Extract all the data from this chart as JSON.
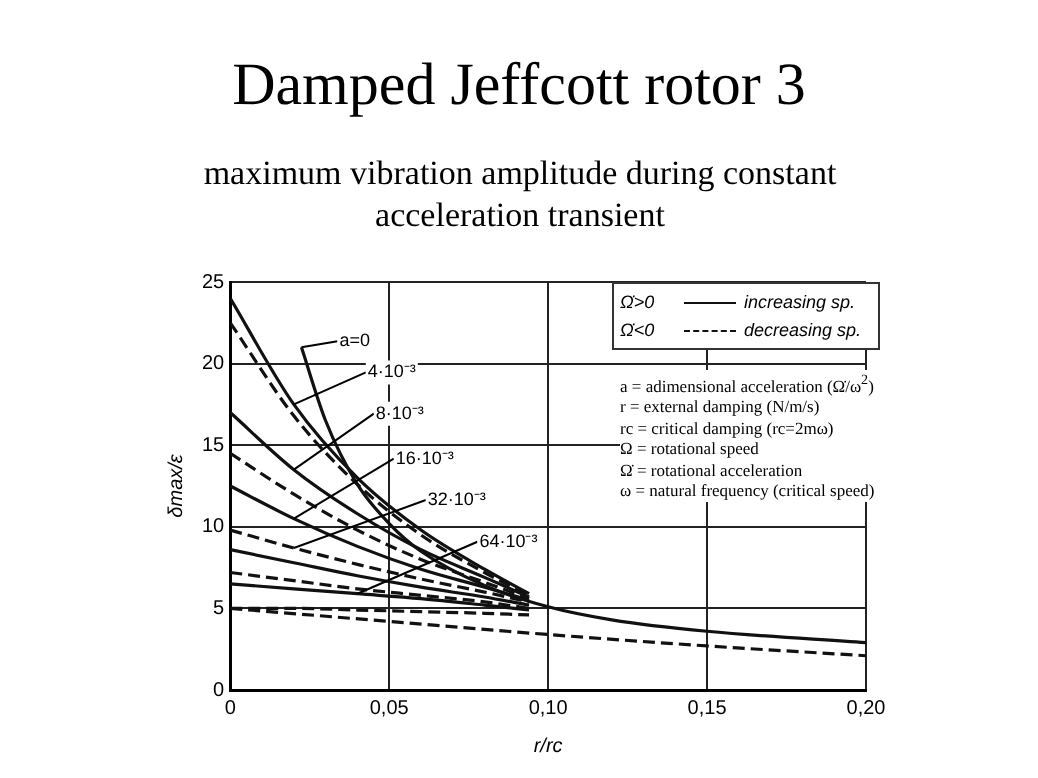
{
  "chart_data": {
    "type": "line",
    "title": "Damped Jeffcott rotor 3",
    "subtitle": "maximum vibration amplitude during constant acceleration transient",
    "xlabel": "r/rc",
    "ylabel": "δmax/ε",
    "xlim": [
      0,
      0.2
    ],
    "xticks": [
      {
        "value": 0,
        "label": "0"
      },
      {
        "value": 0.05,
        "label": "0,05"
      },
      {
        "value": 0.1,
        "label": "0,10"
      },
      {
        "value": 0.15,
        "label": "0,15"
      },
      {
        "value": 0.2,
        "label": "0,20"
      }
    ],
    "ylim": [
      0,
      25
    ],
    "yticks": [
      0,
      5,
      10,
      15,
      20,
      25
    ],
    "grid": true,
    "legend": "top right",
    "marker": "none",
    "series": [
      {
        "color": "#111111",
        "line_style": "solid",
        "x": [
          0.0224,
          0.03,
          0.04,
          0.05,
          0.06,
          0.08,
          0.1,
          0.12,
          0.15,
          0.2
        ],
        "values": [
          21,
          16.5,
          12.6,
          10.2,
          8.5,
          6.4,
          5.1,
          4.3,
          3.6,
          2.9
        ]
      },
      {
        "name": "increasing sp.",
        "color": "#111111",
        "line_style": "solid",
        "x": [
          0,
          0.02,
          0.04,
          0.06,
          0.08,
          0.094
        ],
        "values": [
          24,
          17.5,
          13,
          9.8,
          7.4,
          5.9
        ]
      },
      {
        "name": "decreasing sp.",
        "color": "#111111",
        "line_style": "dashed",
        "x": [
          0,
          0.02,
          0.04,
          0.06,
          0.08,
          0.094
        ],
        "values": [
          22.5,
          16.8,
          12.6,
          9.5,
          7.2,
          5.8
        ]
      },
      {
        "color": "#111111",
        "line_style": "solid",
        "x": [
          0,
          0.02,
          0.04,
          0.06,
          0.08,
          0.094
        ],
        "values": [
          17,
          13.5,
          10.8,
          8.6,
          6.9,
          5.7
        ]
      },
      {
        "color": "#111111",
        "line_style": "dashed",
        "x": [
          0,
          0.02,
          0.04,
          0.06,
          0.08,
          0.094
        ],
        "values": [
          14.5,
          12,
          9.8,
          8,
          6.6,
          5.6
        ]
      },
      {
        "color": "#111111",
        "line_style": "solid",
        "x": [
          0,
          0.02,
          0.04,
          0.06,
          0.08,
          0.094
        ],
        "values": [
          12.5,
          10.5,
          8.8,
          7.4,
          6.3,
          5.5
        ]
      },
      {
        "color": "#111111",
        "line_style": "dashed",
        "x": [
          0,
          0.02,
          0.04,
          0.06,
          0.08,
          0.094
        ],
        "values": [
          9.8,
          8.7,
          7.7,
          6.8,
          6,
          5.4
        ]
      },
      {
        "color": "#111111",
        "line_style": "solid",
        "x": [
          0,
          0.02,
          0.04,
          0.06,
          0.08,
          0.094
        ],
        "values": [
          8.6,
          7.8,
          7,
          6.3,
          5.7,
          5.2
        ]
      },
      {
        "color": "#111111",
        "line_style": "dashed",
        "x": [
          0,
          0.02,
          0.04,
          0.06,
          0.08,
          0.094
        ],
        "values": [
          7.2,
          6.7,
          6.2,
          5.8,
          5.4,
          5
        ]
      },
      {
        "color": "#111111",
        "line_style": "solid",
        "x": [
          0,
          0.02,
          0.04,
          0.06,
          0.08,
          0.094
        ],
        "values": [
          6.5,
          6.2,
          5.9,
          5.6,
          5.2,
          4.9
        ]
      },
      {
        "color": "#111111",
        "line_style": "dashed",
        "x": [
          0,
          0.02,
          0.04,
          0.06,
          0.08,
          0.094
        ],
        "values": [
          5,
          5,
          4.9,
          4.8,
          4.7,
          4.6
        ]
      },
      {
        "color": "#111111",
        "line_style": "dashed",
        "x": [
          0,
          0.05,
          0.1,
          0.15,
          0.2
        ],
        "values": [
          5,
          4.2,
          3.4,
          2.7,
          2.1
        ]
      }
    ],
    "annotations": [
      {
        "text": "a=0",
        "x": 0.0224,
        "y": 21
      },
      {
        "text": "4·10⁻³",
        "x": 0.02,
        "y": 17.5
      },
      {
        "text": "8·10⁻³",
        "x": 0.02,
        "y": 13.5
      },
      {
        "text": "16·10⁻³",
        "x": 0.02,
        "y": 10.5
      },
      {
        "text": "32·10⁻³",
        "x": 0.02,
        "y": 8.7
      },
      {
        "text": "64·10⁻³",
        "x": 0.04,
        "y": 5.9
      },
      "Ω̇>0",
      "Ω̇<0",
      "a = adimensional acceleration (Ω̇/ω$^{2}$)",
      "r = external damping (N/m/s)",
      "rc = critical damping (rc=2mω)",
      "Ω = rotational speed",
      "Ω̇ = rotational acceleration",
      "ω = natural frequency (critical speed)"
    ]
  }
}
